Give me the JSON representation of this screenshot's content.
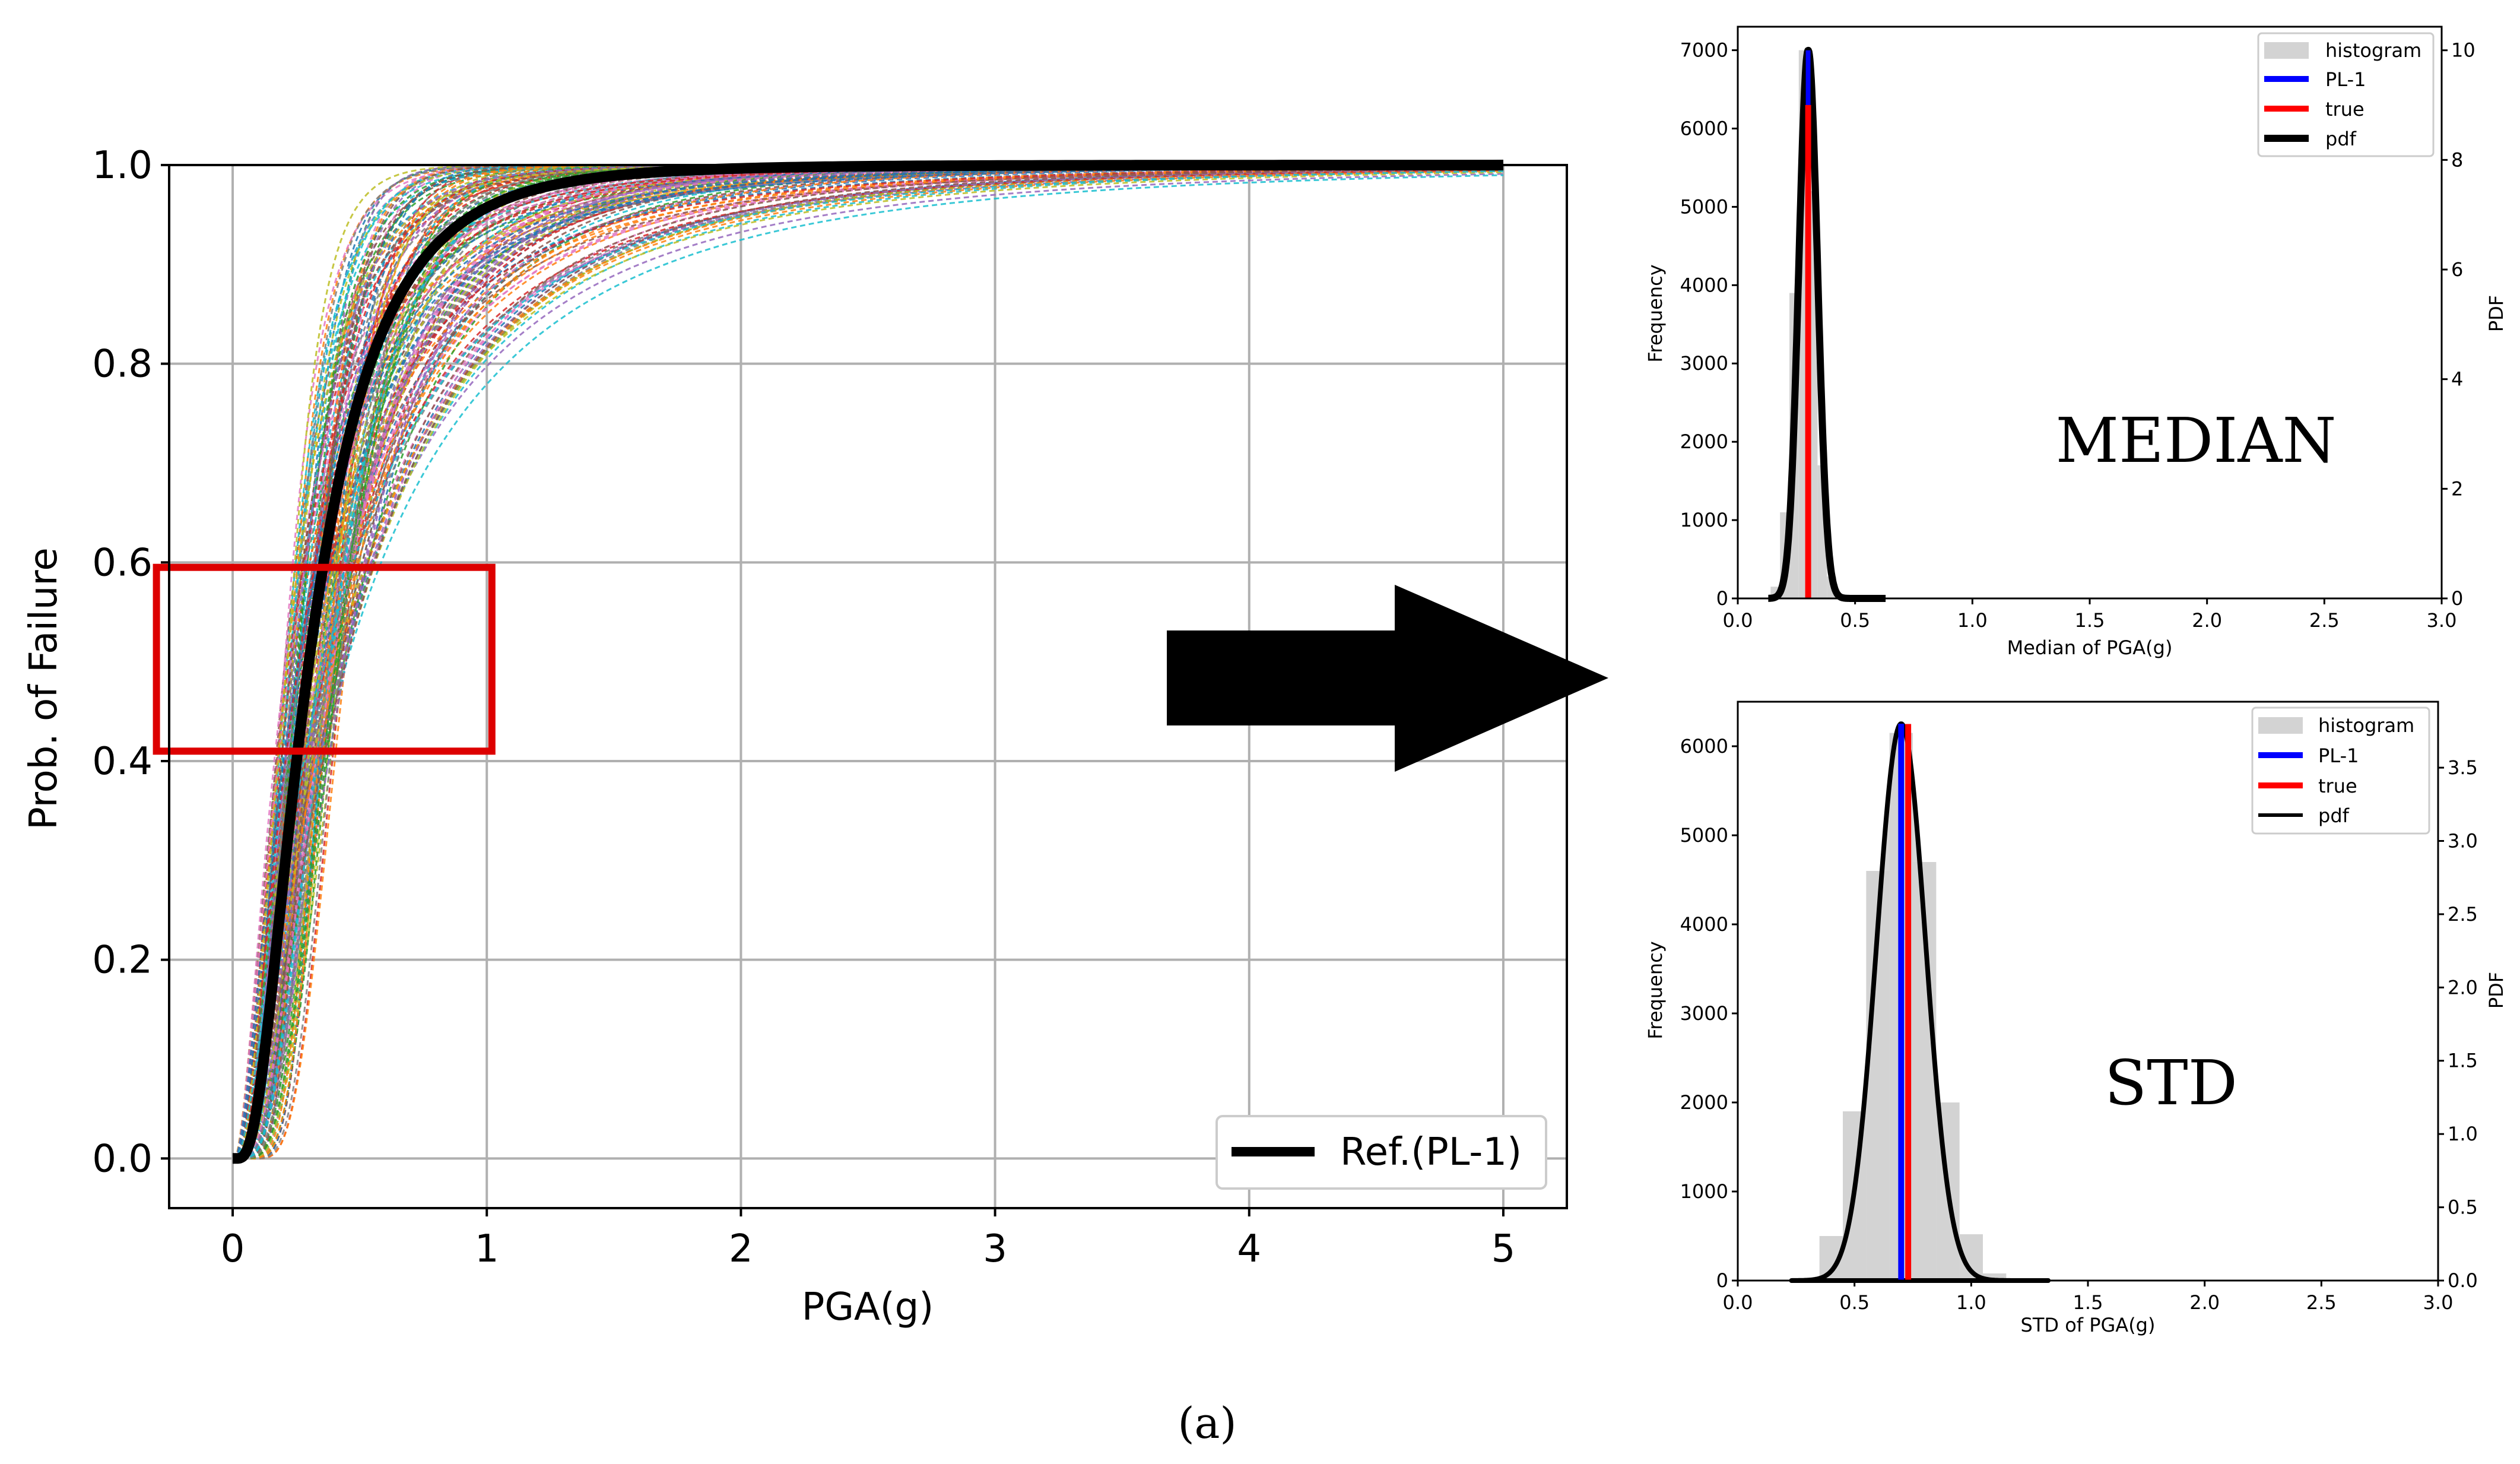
{
  "caption": "(a)",
  "colors": {
    "reference_curve": "#000000",
    "highlight_box": "#dd0000",
    "arrow": "#000000",
    "histogram_fill": "#d3d3d3",
    "pl1": "#0000ff",
    "true": "#ff0000",
    "pdf": "#000000",
    "grid": "#b0b0b0",
    "ensemble_palette": [
      "#1f77b4",
      "#ff7f0e",
      "#2ca02c",
      "#d62728",
      "#9467bd",
      "#8c564b",
      "#e377c2",
      "#7f7f7f",
      "#bcbd22",
      "#17becf"
    ]
  },
  "chart_data": [
    {
      "id": "fragility",
      "type": "line",
      "xlabel": "PGA(g)",
      "ylabel": "Prob. of Failure",
      "xlim": [
        -0.25,
        5.25
      ],
      "ylim": [
        -0.05,
        1.0
      ],
      "xticks": [
        0,
        1,
        2,
        3,
        4,
        5
      ],
      "yticks": [
        0.0,
        0.2,
        0.4,
        0.6,
        0.8,
        1.0
      ],
      "ytick_labels": [
        "0.0",
        "0.2",
        "0.4",
        "0.6",
        "0.8",
        "1.0"
      ],
      "grid": true,
      "x_start": 0.0,
      "x_end": 5.0,
      "reference": {
        "name": "Ref.(PL-1)",
        "median": 0.3,
        "beta": 0.7
      },
      "ensemble": {
        "description": "sampled fragility curves (dashed, multicolor)",
        "count": 160,
        "median_range": [
          0.2,
          0.45
        ],
        "beta_range": [
          0.35,
          1.05
        ]
      },
      "highlight_box": {
        "x": [
          -0.3,
          1.02
        ],
        "y": [
          0.41,
          0.595
        ]
      },
      "legend": {
        "position": "lower-right",
        "entries": [
          "Ref.(PL-1)"
        ]
      }
    },
    {
      "id": "median_hist",
      "type": "bar",
      "annotation": "MEDIAN",
      "xlabel": "Median of PGA(g)",
      "ylabel": "Frequency",
      "y2label": "PDF",
      "xlim": [
        0.0,
        3.0
      ],
      "xticks": [
        0.0,
        0.5,
        1.0,
        1.5,
        2.0,
        2.5,
        3.0
      ],
      "xtick_labels": [
        "0.0",
        "0.5",
        "1.0",
        "1.5",
        "2.0",
        "2.5",
        "3.0"
      ],
      "ylim": [
        0,
        7300
      ],
      "yticks": [
        0,
        1000,
        2000,
        3000,
        4000,
        5000,
        6000,
        7000
      ],
      "y2lim": [
        0,
        10.43
      ],
      "y2ticks": [
        0,
        2,
        4,
        6,
        8,
        10
      ],
      "pdf": {
        "mean": 0.3,
        "sd": 0.04,
        "peak": 10.0
      },
      "pdf_support": [
        0.13,
        0.63
      ],
      "histogram_bins": {
        "edges": [
          0.14,
          0.18,
          0.22,
          0.26,
          0.3,
          0.34,
          0.38,
          0.42,
          0.46,
          0.5
        ],
        "counts": [
          150,
          1100,
          3900,
          7000,
          5200,
          1700,
          280,
          40,
          10
        ]
      },
      "pl1_value": 0.3,
      "true_value": 0.3,
      "true_height": 6300,
      "legend": {
        "position": "top-right",
        "entries": [
          "histogram",
          "PL-1",
          "true",
          "pdf"
        ]
      }
    },
    {
      "id": "std_hist",
      "type": "bar",
      "annotation": "STD",
      "xlabel": "STD of PGA(g)",
      "ylabel": "Frequency",
      "y2label": "PDF",
      "xlim": [
        0.0,
        3.0
      ],
      "xticks": [
        0.0,
        0.5,
        1.0,
        1.5,
        2.0,
        2.5,
        3.0
      ],
      "xtick_labels": [
        "0.0",
        "0.5",
        "1.0",
        "1.5",
        "2.0",
        "2.5",
        "3.0"
      ],
      "ylim": [
        0,
        6500
      ],
      "yticks": [
        0,
        1000,
        2000,
        3000,
        4000,
        5000,
        6000
      ],
      "y2lim": [
        0,
        3.95
      ],
      "y2ticks": [
        0,
        0.5,
        1.0,
        1.5,
        2.0,
        2.5,
        3.0,
        3.5
      ],
      "y2tick_labels": [
        "0.0",
        "0.5",
        "1.0",
        "1.5",
        "2.0",
        "2.5",
        "3.0",
        "3.5"
      ],
      "pdf": {
        "mean": 0.7,
        "sd": 0.105,
        "peak": 3.8
      },
      "pdf_support": [
        0.23,
        1.33
      ],
      "histogram_bins": {
        "edges": [
          0.35,
          0.45,
          0.55,
          0.65,
          0.75,
          0.85,
          0.95,
          1.05,
          1.15
        ],
        "counts": [
          500,
          1900,
          4600,
          6150,
          4700,
          2000,
          520,
          80
        ]
      },
      "pl1_value": 0.7,
      "true_value": 0.73,
      "true_height": 6250,
      "legend": {
        "position": "top-right",
        "entries": [
          "histogram",
          "PL-1",
          "true",
          "pdf"
        ]
      }
    }
  ]
}
